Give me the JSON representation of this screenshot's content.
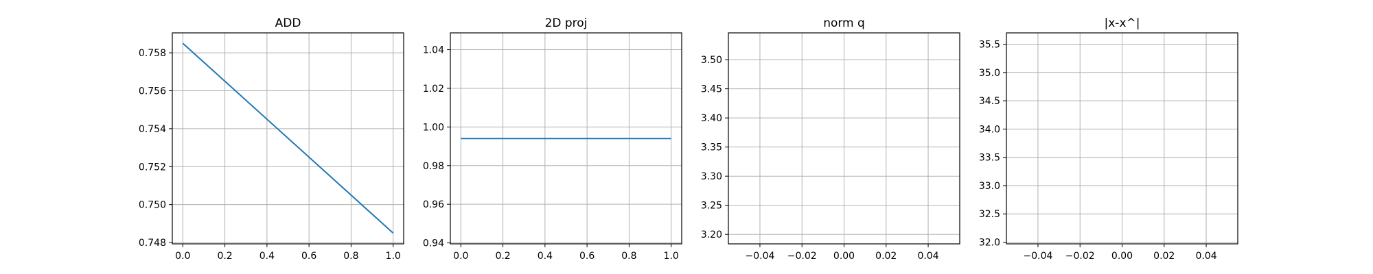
{
  "chart_data": [
    {
      "type": "line",
      "title": "ADD",
      "xlabel": "",
      "ylabel": "",
      "xlim": [
        -0.05,
        1.05
      ],
      "ylim": [
        0.74793,
        0.75905
      ],
      "xticks": [
        0.0,
        0.2,
        0.4,
        0.6,
        0.8,
        1.0
      ],
      "xtick_labels": [
        "0.0",
        "0.2",
        "0.4",
        "0.6",
        "0.8",
        "1.0"
      ],
      "yticks": [
        0.748,
        0.75,
        0.752,
        0.754,
        0.756,
        0.758
      ],
      "ytick_labels": [
        "0.748",
        "0.750",
        "0.752",
        "0.754",
        "0.756",
        "0.758"
      ],
      "grid": true,
      "series": [
        {
          "x": [
            0.0,
            1.0
          ],
          "y": [
            0.7585,
            0.7485
          ],
          "color": "#1f77b4"
        }
      ]
    },
    {
      "type": "line",
      "title": "2D proj",
      "xlabel": "",
      "ylabel": "",
      "xlim": [
        -0.05,
        1.05
      ],
      "ylim": [
        0.9395,
        1.0487
      ],
      "xticks": [
        0.0,
        0.2,
        0.4,
        0.6,
        0.8,
        1.0
      ],
      "xtick_labels": [
        "0.0",
        "0.2",
        "0.4",
        "0.6",
        "0.8",
        "1.0"
      ],
      "yticks": [
        0.94,
        0.96,
        0.98,
        1.0,
        1.02,
        1.04
      ],
      "ytick_labels": [
        "0.94",
        "0.96",
        "0.98",
        "1.00",
        "1.02",
        "1.04"
      ],
      "grid": true,
      "series": [
        {
          "x": [
            0.0,
            1.0
          ],
          "y": [
            0.994,
            0.994
          ],
          "color": "#1f77b4"
        }
      ]
    },
    {
      "type": "line",
      "title": "norm q",
      "xlabel": "",
      "ylabel": "",
      "xlim": [
        -0.055,
        0.055
      ],
      "ylim": [
        3.1838,
        3.546
      ],
      "xticks": [
        -0.04,
        -0.02,
        0.0,
        0.02,
        0.04
      ],
      "xtick_labels": [
        "−0.04",
        "−0.02",
        "0.00",
        "0.02",
        "0.04"
      ],
      "yticks": [
        3.2,
        3.25,
        3.3,
        3.35,
        3.4,
        3.45,
        3.5
      ],
      "ytick_labels": [
        "3.20",
        "3.25",
        "3.30",
        "3.35",
        "3.40",
        "3.45",
        "3.50"
      ],
      "grid": true,
      "series": []
    },
    {
      "type": "line",
      "title": "|x-x^|",
      "xlabel": "",
      "ylabel": "",
      "xlim": [
        -0.055,
        0.055
      ],
      "ylim": [
        31.97,
        35.7
      ],
      "xticks": [
        -0.04,
        -0.02,
        0.0,
        0.02,
        0.04
      ],
      "xtick_labels": [
        "−0.04",
        "−0.02",
        "0.00",
        "0.02",
        "0.04"
      ],
      "yticks": [
        32.0,
        32.5,
        33.0,
        33.5,
        34.0,
        34.5,
        35.0,
        35.5
      ],
      "ytick_labels": [
        "32.0",
        "32.5",
        "33.0",
        "33.5",
        "34.0",
        "34.5",
        "35.0",
        "35.5"
      ],
      "grid": true,
      "series": []
    }
  ]
}
